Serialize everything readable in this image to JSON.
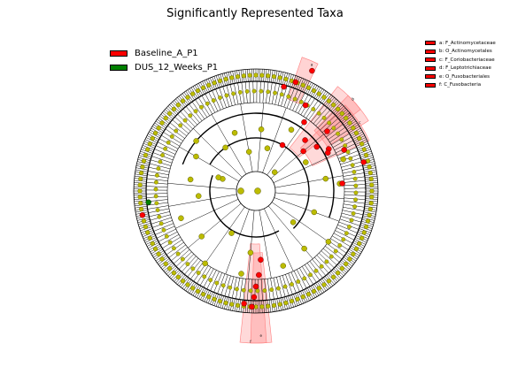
{
  "title": "Significantly Represented Taxa",
  "legend": [
    {
      "label": "Baseline_A_P1",
      "color": "#ff0000"
    },
    {
      "label": "DUS_12_Weeks_P1",
      "color": "#008000"
    }
  ],
  "taxa_legend": [
    {
      "label": "a: F_Actinomycetaceae",
      "color": "#ff0000"
    },
    {
      "label": "b: O_Actinomycetales",
      "color": "#ff0000"
    },
    {
      "label": "c: F_Coriobacteriaceae",
      "color": "#ff0000"
    },
    {
      "label": "d: F_Leptotrichiaceae",
      "color": "#ff0000"
    },
    {
      "label": "e: O_Fusobacteriales",
      "color": "#ff0000"
    },
    {
      "label": "f: C_Fusobacteria",
      "color": "#ff0000"
    }
  ],
  "colors": {
    "node_default": "#bcbc00",
    "node_enriched": "#ff0000",
    "node_depleted": "#008000",
    "highlight": "#ff8080"
  },
  "wedge_labels": [
    "a",
    "b",
    "c",
    "d",
    "e",
    "f"
  ]
}
